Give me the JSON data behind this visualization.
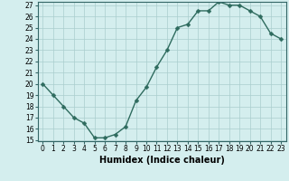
{
  "x": [
    0,
    1,
    2,
    3,
    4,
    5,
    6,
    7,
    8,
    9,
    10,
    11,
    12,
    13,
    14,
    15,
    16,
    17,
    18,
    19,
    20,
    21,
    22,
    23
  ],
  "y": [
    20,
    19,
    18,
    17,
    16.5,
    15.2,
    15.2,
    15.5,
    16.2,
    18.5,
    19.7,
    21.5,
    23.0,
    25.0,
    25.3,
    26.5,
    26.5,
    27.3,
    27.0,
    27.0,
    26.5,
    26.0,
    24.5,
    24.0
  ],
  "xlabel": "Humidex (Indice chaleur)",
  "ylim_min": 15,
  "ylim_max": 27,
  "xlim_min": -0.5,
  "xlim_max": 23.5,
  "yticks": [
    15,
    16,
    17,
    18,
    19,
    20,
    21,
    22,
    23,
    24,
    25,
    26,
    27
  ],
  "xtick_labels": [
    "0",
    "1",
    "2",
    "3",
    "4",
    "5",
    "6",
    "7",
    "8",
    "9",
    "10",
    "11",
    "12",
    "13",
    "14",
    "15",
    "16",
    "17",
    "18",
    "19",
    "20",
    "21",
    "22",
    "23"
  ],
  "line_color": "#2e6b5e",
  "bg_color": "#d4eeee",
  "grid_color": "#aacece",
  "marker_size": 2.5,
  "line_width": 1.0,
  "xlabel_fontsize": 7,
  "tick_fontsize": 5.5
}
